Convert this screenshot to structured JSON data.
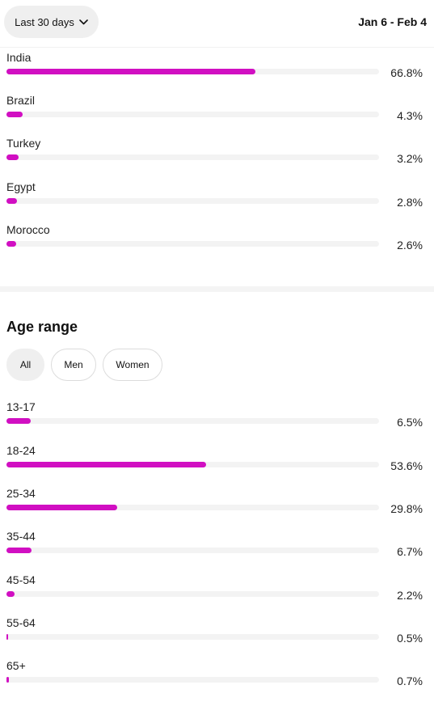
{
  "header": {
    "range_label": "Last 30 days",
    "date_range": "Jan 6 - Feb 4"
  },
  "countries": [
    {
      "label": "India",
      "value": 66.8,
      "pct": "66.8%"
    },
    {
      "label": "Brazil",
      "value": 4.3,
      "pct": "4.3%"
    },
    {
      "label": "Turkey",
      "value": 3.2,
      "pct": "3.2%"
    },
    {
      "label": "Egypt",
      "value": 2.8,
      "pct": "2.8%"
    },
    {
      "label": "Morocco",
      "value": 2.6,
      "pct": "2.6%"
    }
  ],
  "age": {
    "title": "Age range",
    "filters": [
      "All",
      "Men",
      "Women"
    ],
    "selected_filter": "All",
    "rows": [
      {
        "label": "13-17",
        "value": 6.5,
        "pct": "6.5%"
      },
      {
        "label": "18-24",
        "value": 53.6,
        "pct": "53.6%"
      },
      {
        "label": "25-34",
        "value": 29.8,
        "pct": "29.8%"
      },
      {
        "label": "35-44",
        "value": 6.7,
        "pct": "6.7%"
      },
      {
        "label": "45-54",
        "value": 2.2,
        "pct": "2.2%"
      },
      {
        "label": "55-64",
        "value": 0.5,
        "pct": "0.5%"
      },
      {
        "label": "65+",
        "value": 0.7,
        "pct": "0.7%"
      }
    ]
  },
  "colors": {
    "bar": "#d10fc2",
    "track": "#f3f3f3"
  },
  "icons": {
    "dropdown": "chevron-down-icon"
  }
}
